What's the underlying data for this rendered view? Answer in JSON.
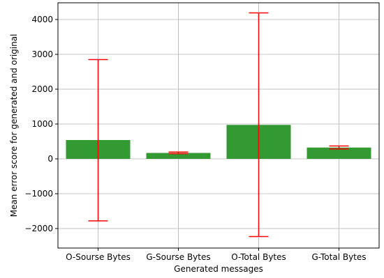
{
  "chart_data": {
    "type": "bar",
    "title": "",
    "xlabel": "Generated messages",
    "ylabel": "Mean error score for generated and original",
    "categories": [
      "O-Sourse Bytes",
      "G-Sourse Bytes",
      "O-Total Bytes",
      "G-Total Bytes"
    ],
    "values": [
      540,
      170,
      975,
      325
    ],
    "error_lower": [
      -1780,
      150,
      -2230,
      285
    ],
    "error_upper": [
      2850,
      195,
      4190,
      370
    ],
    "ylim": [
      -2560,
      4480
    ],
    "yticks": [
      -2000,
      -1000,
      0,
      1000,
      2000,
      3000,
      4000
    ],
    "ytick_labels": [
      "−2000",
      "−1000",
      "0",
      "1000",
      "2000",
      "3000",
      "4000"
    ],
    "grid": true,
    "bar_color": "#339933",
    "error_color": "#ff0000"
  }
}
